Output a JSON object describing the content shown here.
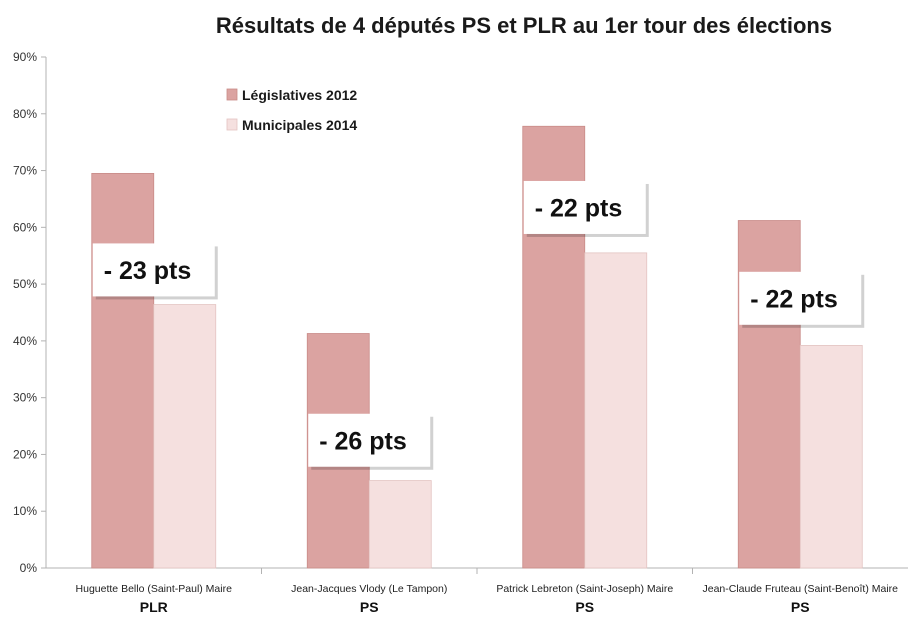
{
  "chart_data": {
    "type": "bar",
    "title": "Résultats de 4 députés PS et PLR au 1er tour des élections",
    "ylim": [
      0,
      90
    ],
    "yticks": [
      "0%",
      "10%",
      "20%",
      "30%",
      "40%",
      "50%",
      "60%",
      "70%",
      "80%",
      "90%"
    ],
    "categories": [
      "Huguette Bello (Saint-Paul) Maire",
      "Jean-Jacques Vlody (Le Tampon)",
      "Patrick Lebreton (Saint-Joseph)  Maire",
      "Jean-Claude Fruteau (Saint-Benoît)  Maire"
    ],
    "parties": [
      "PLR",
      "PS",
      "PS",
      "PS"
    ],
    "series": [
      {
        "name": "Législatives 2012",
        "color": "#dba3a1",
        "values": [
          69.5,
          41.3,
          77.8,
          61.2
        ]
      },
      {
        "name": "Municipales 2014",
        "color": "#f5e0df",
        "values": [
          46.4,
          15.4,
          55.5,
          39.2
        ]
      }
    ],
    "annotations": [
      "- 23 pts",
      "- 26 pts",
      "- 22 pts",
      "- 22 pts"
    ],
    "legend": "top-left"
  }
}
